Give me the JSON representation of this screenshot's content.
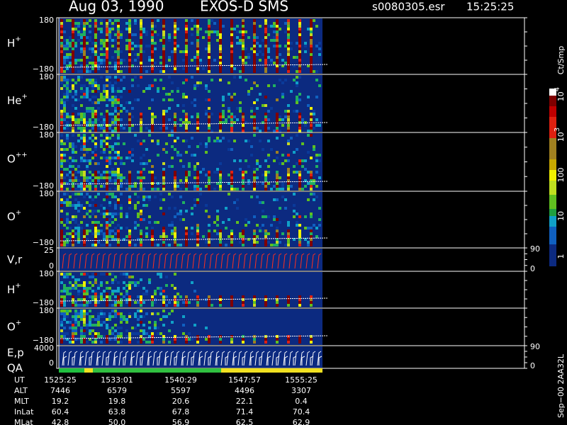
{
  "header": {
    "date": "Aug 03, 1990",
    "instrument": "EXOS-D SMS",
    "file": "s0080305.esr",
    "time": "15:25:25"
  },
  "panels": [
    {
      "label": "H",
      "sup": "+",
      "ytop": "180",
      "ybottom": "−180"
    },
    {
      "label": "He",
      "sup": "+",
      "ytop": "180",
      "ybottom": "−180"
    },
    {
      "label": "O",
      "sup": "++",
      "ytop": "180",
      "ybottom": "−180"
    },
    {
      "label": "O",
      "sup": "+",
      "ytop": "180",
      "ybottom": "−180"
    },
    {
      "label": "V,r",
      "ytop": "25",
      "ybottom": "0",
      "right_top": "90",
      "right_bottom": "0"
    },
    {
      "label": "H",
      "sup": "+",
      "ytop": "180",
      "ybottom": "−180"
    },
    {
      "label": "O",
      "sup": "+",
      "ytop": "180",
      "ybottom": "−180"
    },
    {
      "label": "E,p",
      "ytop": "4000",
      "ybottom": "0",
      "right_top": "90",
      "right_bottom": "0"
    }
  ],
  "qa": "QA",
  "colorbar": {
    "unit": "Ct/Smp",
    "ticks": [
      {
        "base": "10",
        "exp": "4"
      },
      {
        "base": "10",
        "exp": "3"
      },
      {
        "base": "100"
      },
      {
        "base": "10"
      },
      {
        "base": "1"
      }
    ]
  },
  "orbit": [
    {
      "label": "UT",
      "values": [
        "1525:25",
        "1533:01",
        "1540:29",
        "1547:57",
        "1555:25"
      ]
    },
    {
      "label": "ALT",
      "values": [
        "7446",
        "6579",
        "5597",
        "4496",
        "3307"
      ]
    },
    {
      "label": "MLT",
      "values": [
        "19.2",
        "19.8",
        "20.6",
        "22.1",
        "0.4"
      ]
    },
    {
      "label": "InLat",
      "values": [
        "60.4",
        "63.8",
        "67.8",
        "71.4",
        "70.4"
      ]
    },
    {
      "label": "MLat",
      "values": [
        "42.8",
        "50.0",
        "56.9",
        "62.5",
        "62.9"
      ]
    }
  ],
  "footer": "Sep−00  2AA32L"
}
